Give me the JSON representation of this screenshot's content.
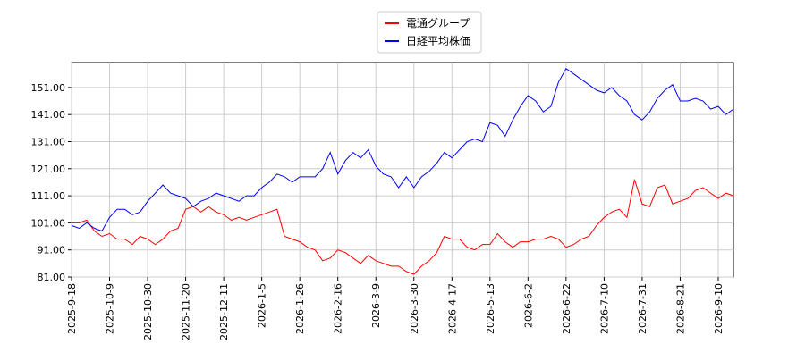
{
  "chart_data": {
    "type": "line",
    "categories": [
      "2025-9-18",
      null,
      null,
      null,
      null,
      "2025-10-9",
      null,
      null,
      null,
      null,
      "2025-10-30",
      null,
      null,
      null,
      null,
      "2025-11-20",
      null,
      null,
      null,
      null,
      "2025-12-11",
      null,
      null,
      null,
      null,
      "2026-1-5",
      null,
      null,
      null,
      null,
      "2026-1-26",
      null,
      null,
      null,
      null,
      "2026-2-16",
      null,
      null,
      null,
      null,
      "2026-3-9",
      null,
      null,
      null,
      null,
      "2026-3-30",
      null,
      null,
      null,
      null,
      "2026-4-17",
      null,
      null,
      null,
      null,
      "2026-5-13",
      null,
      null,
      null,
      null,
      "2026-6-2",
      null,
      null,
      null,
      null,
      "2026-6-22",
      null,
      null,
      null,
      null,
      "2026-7-10",
      null,
      null,
      null,
      null,
      "2026-7-31",
      null,
      null,
      null,
      null,
      "2026-8-21",
      null,
      null,
      null,
      null,
      "2026-9-10",
      null,
      null
    ],
    "series": [
      {
        "name": "電通グループ",
        "color": "#ff0000",
        "values": [
          101,
          101,
          102,
          98,
          96,
          97,
          95,
          95,
          93,
          96,
          95,
          93,
          95,
          98,
          99,
          106,
          107,
          105,
          107,
          105,
          104,
          102,
          103,
          102,
          103,
          104,
          105,
          106,
          96,
          95,
          94,
          92,
          91,
          87,
          88,
          91,
          90,
          88,
          86,
          89,
          87,
          86,
          85,
          85,
          83,
          82,
          85,
          87,
          90,
          96,
          95,
          95,
          92,
          91,
          93,
          93,
          97,
          94,
          92,
          94,
          94,
          95,
          95,
          96,
          95,
          92,
          93,
          95,
          96,
          100,
          103,
          105,
          106,
          103,
          117,
          108,
          107,
          114,
          115,
          108,
          109,
          110,
          113,
          114,
          112,
          110,
          112,
          111
        ]
      },
      {
        "name": "日経平均株価",
        "color": "#0000ff",
        "values": [
          100,
          99,
          101,
          99,
          98,
          103,
          106,
          106,
          104,
          105,
          109,
          112,
          115,
          112,
          111,
          110,
          107,
          109,
          110,
          112,
          111,
          110,
          109,
          111,
          111,
          114,
          116,
          119,
          118,
          116,
          118,
          118,
          118,
          121,
          127,
          119,
          124,
          127,
          125,
          128,
          122,
          119,
          118,
          114,
          118,
          114,
          118,
          120,
          123,
          127,
          125,
          128,
          131,
          132,
          131,
          138,
          137,
          133,
          139,
          144,
          148,
          146,
          142,
          144,
          153,
          158,
          156,
          154,
          152,
          150,
          149,
          151,
          148,
          146,
          141,
          139,
          142,
          147,
          150,
          152,
          146,
          146,
          147,
          146,
          143,
          144,
          141,
          143
        ]
      }
    ],
    "ylim": [
      81,
      160.2
    ],
    "yticks": [
      {
        "value": 81,
        "label": "81.00"
      },
      {
        "value": 91,
        "label": "91.00"
      },
      {
        "value": 101,
        "label": "101.00"
      },
      {
        "value": 111,
        "label": "111.00"
      },
      {
        "value": 121,
        "label": "121.00"
      },
      {
        "value": 131,
        "label": "131.00"
      },
      {
        "value": 141,
        "label": "141.00"
      },
      {
        "value": 151,
        "label": "151.00"
      }
    ],
    "grid": true
  }
}
